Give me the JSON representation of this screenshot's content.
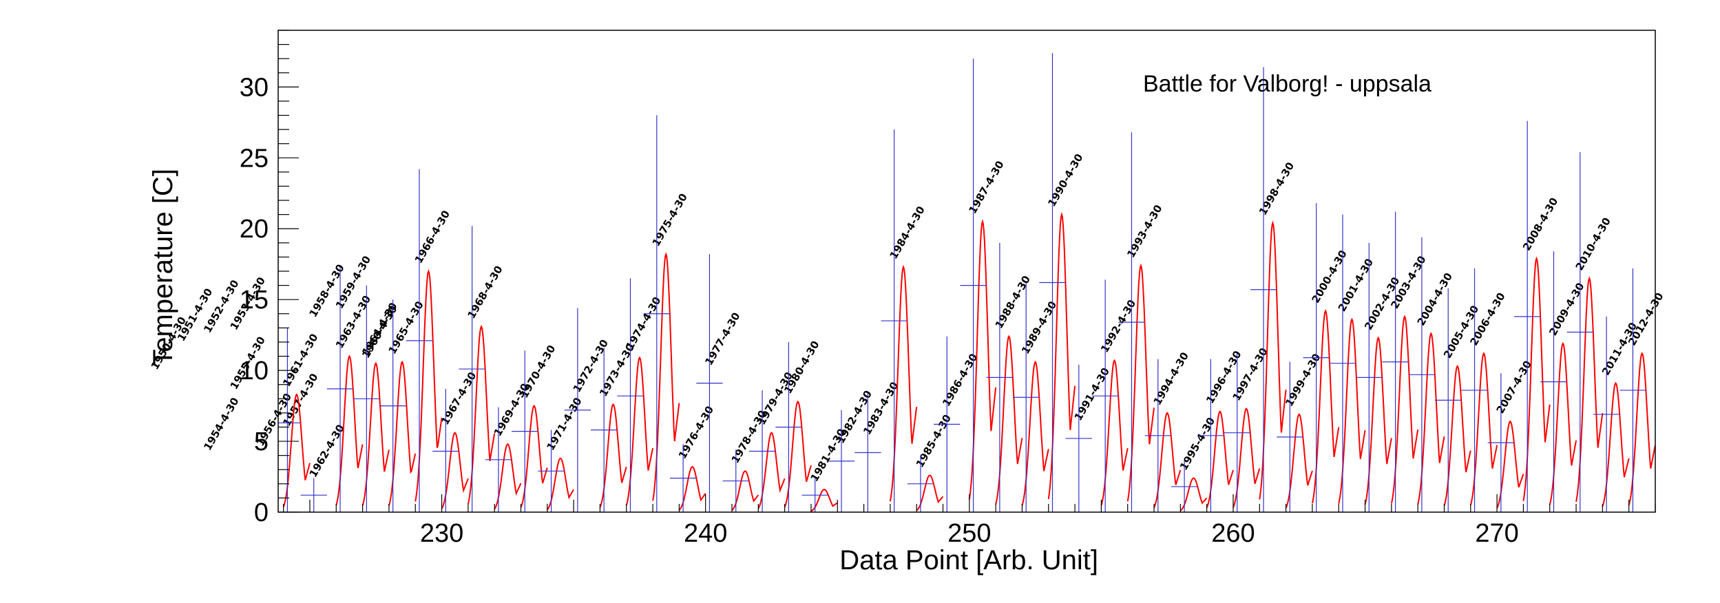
{
  "chart_data": {
    "type": "line",
    "title": "Battle for Valborg! - uppsala",
    "xlabel": "Data Point [Arb. Unit]",
    "ylabel": "Temperature [C]",
    "xlim": [
      223.8,
      276
    ],
    "ylim": [
      0,
      34
    ],
    "xticks": [
      230,
      240,
      250,
      260,
      270
    ],
    "yticks": [
      0,
      5,
      10,
      15,
      20,
      25,
      30
    ],
    "grid": false,
    "colors": {
      "curve": "#ff0000",
      "marker": "#3333cc",
      "axis": "#000000"
    },
    "points": [
      {
        "x": 224.5,
        "mean": 6.3,
        "upper": 13.0,
        "peak": 8.3,
        "label": "1961-4-30"
      },
      {
        "x": 225.5,
        "mean": 1.2,
        "upper": 2.4,
        "peak": 0,
        "label": "1962-4-30"
      },
      {
        "x": 226.5,
        "mean": 8.7,
        "upper": 17.3,
        "peak": 11.0,
        "label": "1963-4-30"
      },
      {
        "x": 227.5,
        "mean": 8.0,
        "upper": 16.0,
        "peak": 10.5,
        "label": "1964-4-30"
      },
      {
        "x": 228.5,
        "mean": 7.5,
        "upper": 15.0,
        "peak": 10.6,
        "label": "1965-4-30"
      },
      {
        "x": 229.5,
        "mean": 12.1,
        "upper": 24.2,
        "peak": 17.0,
        "label": "1966-4-30"
      },
      {
        "x": 230.5,
        "mean": 4.3,
        "upper": 8.7,
        "peak": 5.6,
        "label": "1967-4-30"
      },
      {
        "x": 231.5,
        "mean": 10.1,
        "upper": 20.2,
        "peak": 13.1,
        "label": "1968-4-30"
      },
      {
        "x": 232.5,
        "mean": 3.7,
        "upper": 7.4,
        "peak": 4.8,
        "label": "1969-4-30"
      },
      {
        "x": 233.5,
        "mean": 5.7,
        "upper": 11.4,
        "peak": 7.5,
        "label": "1970-4-30"
      },
      {
        "x": 234.5,
        "mean": 2.9,
        "upper": 5.8,
        "peak": 3.8,
        "label": "1971-4-30"
      },
      {
        "x": 235.5,
        "mean": 7.2,
        "upper": 14.4,
        "peak": 0,
        "label": "1972-4-30"
      },
      {
        "x": 236.5,
        "mean": 5.8,
        "upper": 11.6,
        "peak": 7.6,
        "label": "1973-4-30"
      },
      {
        "x": 237.5,
        "mean": 8.2,
        "upper": 16.5,
        "peak": 10.9,
        "label": "1974-4-30"
      },
      {
        "x": 238.5,
        "mean": 14.0,
        "upper": 28.0,
        "peak": 18.2,
        "label": "1975-4-30"
      },
      {
        "x": 239.5,
        "mean": 2.4,
        "upper": 4.8,
        "peak": 3.2,
        "label": "1976-4-30"
      },
      {
        "x": 240.5,
        "mean": 9.1,
        "upper": 18.2,
        "peak": 0,
        "label": "1977-4-30"
      },
      {
        "x": 241.5,
        "mean": 2.2,
        "upper": 4.4,
        "peak": 2.9,
        "label": "1978-4-30"
      },
      {
        "x": 242.5,
        "mean": 4.3,
        "upper": 8.6,
        "peak": 5.6,
        "label": "1979-4-30"
      },
      {
        "x": 243.5,
        "mean": 6.0,
        "upper": 12.0,
        "peak": 7.8,
        "label": "1980-4-30"
      },
      {
        "x": 244.5,
        "mean": 1.2,
        "upper": 2.4,
        "peak": 1.6,
        "label": "1981-4-30"
      },
      {
        "x": 245.5,
        "mean": 3.6,
        "upper": 7.2,
        "peak": 0,
        "label": "1982-4-30"
      },
      {
        "x": 246.5,
        "mean": 4.2,
        "upper": 8.4,
        "peak": 0,
        "label": "1983-4-30"
      },
      {
        "x": 247.5,
        "mean": 13.5,
        "upper": 27.0,
        "peak": 17.3,
        "label": "1984-4-30"
      },
      {
        "x": 248.5,
        "mean": 2.0,
        "upper": 4.0,
        "peak": 2.6,
        "label": "1985-4-30"
      },
      {
        "x": 249.5,
        "mean": 6.2,
        "upper": 12.4,
        "peak": 0,
        "label": "1986-4-30"
      },
      {
        "x": 250.5,
        "mean": 16.0,
        "upper": 32.0,
        "peak": 20.5,
        "label": "1987-4-30"
      },
      {
        "x": 251.5,
        "mean": 9.5,
        "upper": 19.0,
        "peak": 12.4,
        "label": "1988-4-30"
      },
      {
        "x": 252.5,
        "mean": 8.1,
        "upper": 16.2,
        "peak": 10.6,
        "label": "1989-4-30"
      },
      {
        "x": 253.5,
        "mean": 16.2,
        "upper": 32.4,
        "peak": 21.0,
        "label": "1990-4-30"
      },
      {
        "x": 254.5,
        "mean": 5.2,
        "upper": 10.4,
        "peak": 0,
        "label": "1991-4-30"
      },
      {
        "x": 255.5,
        "mean": 8.2,
        "upper": 16.4,
        "peak": 10.7,
        "label": "1992-4-30"
      },
      {
        "x": 256.5,
        "mean": 13.4,
        "upper": 26.8,
        "peak": 17.4,
        "label": "1993-4-30"
      },
      {
        "x": 257.5,
        "mean": 5.4,
        "upper": 10.8,
        "peak": 7.0,
        "label": "1994-4-30"
      },
      {
        "x": 258.5,
        "mean": 1.8,
        "upper": 3.6,
        "peak": 2.4,
        "label": "1995-4-30"
      },
      {
        "x": 259.5,
        "mean": 5.4,
        "upper": 10.8,
        "peak": 7.1,
        "label": "1996-4-30"
      },
      {
        "x": 260.5,
        "mean": 5.6,
        "upper": 11.2,
        "peak": 7.3,
        "label": "1997-4-30"
      },
      {
        "x": 261.5,
        "mean": 15.7,
        "upper": 31.4,
        "peak": 20.4,
        "label": "1998-4-30"
      },
      {
        "x": 262.5,
        "mean": 5.3,
        "upper": 10.6,
        "peak": 6.9,
        "label": "1999-4-30"
      },
      {
        "x": 263.5,
        "mean": 10.9,
        "upper": 21.8,
        "peak": 14.2,
        "label": "2000-4-30"
      },
      {
        "x": 264.5,
        "mean": 10.5,
        "upper": 21.0,
        "peak": 13.6,
        "label": "2001-4-30"
      },
      {
        "x": 265.5,
        "mean": 9.5,
        "upper": 19.0,
        "peak": 12.3,
        "label": "2002-4-30"
      },
      {
        "x": 266.5,
        "mean": 10.6,
        "upper": 21.2,
        "peak": 13.8,
        "label": "2003-4-30"
      },
      {
        "x": 267.5,
        "mean": 9.7,
        "upper": 19.4,
        "peak": 12.6,
        "label": "2004-4-30"
      },
      {
        "x": 268.5,
        "mean": 7.9,
        "upper": 15.8,
        "peak": 10.3,
        "label": "2005-4-30"
      },
      {
        "x": 269.5,
        "mean": 8.6,
        "upper": 17.2,
        "peak": 11.2,
        "label": "2006-4-30"
      },
      {
        "x": 270.5,
        "mean": 4.9,
        "upper": 9.8,
        "peak": 6.4,
        "label": "2007-4-30"
      },
      {
        "x": 271.5,
        "mean": 13.8,
        "upper": 27.6,
        "peak": 17.9,
        "label": "2008-4-30"
      },
      {
        "x": 272.5,
        "mean": 9.2,
        "upper": 18.4,
        "peak": 11.9,
        "label": "2009-4-30"
      },
      {
        "x": 273.5,
        "mean": 12.7,
        "upper": 25.4,
        "peak": 16.5,
        "label": "2010-4-30"
      },
      {
        "x": 274.5,
        "mean": 6.9,
        "upper": 13.8,
        "peak": 9.1,
        "label": "2011-4-30"
      },
      {
        "x": 275.5,
        "mean": 8.6,
        "upper": 17.2,
        "peak": 11.2,
        "label": "2012-4-30"
      }
    ],
    "offscreen_labels": [
      {
        "x": 219.2,
        "y": 10.0,
        "label": "1950-4-30"
      },
      {
        "x": 220.2,
        "y": 12.0,
        "label": "1951-4-30"
      },
      {
        "x": 221.2,
        "y": 12.6,
        "label": "1952-4-30"
      },
      {
        "x": 222.2,
        "y": 12.8,
        "label": "1953-4-30"
      },
      {
        "x": 221.2,
        "y": 4.3,
        "label": "1954-4-30"
      },
      {
        "x": 222.2,
        "y": 8.6,
        "label": "1955-4-30"
      },
      {
        "x": 223.2,
        "y": 4.6,
        "label": "1956-4-30"
      },
      {
        "x": 224.2,
        "y": 6.0,
        "label": "1957-4-30"
      },
      {
        "x": 225.2,
        "y": 13.7,
        "label": "1958-4-30"
      },
      {
        "x": 226.2,
        "y": 14.3,
        "label": "1959-4-30"
      },
      {
        "x": 227.2,
        "y": 10.8,
        "label": "1960-4-30"
      }
    ]
  }
}
